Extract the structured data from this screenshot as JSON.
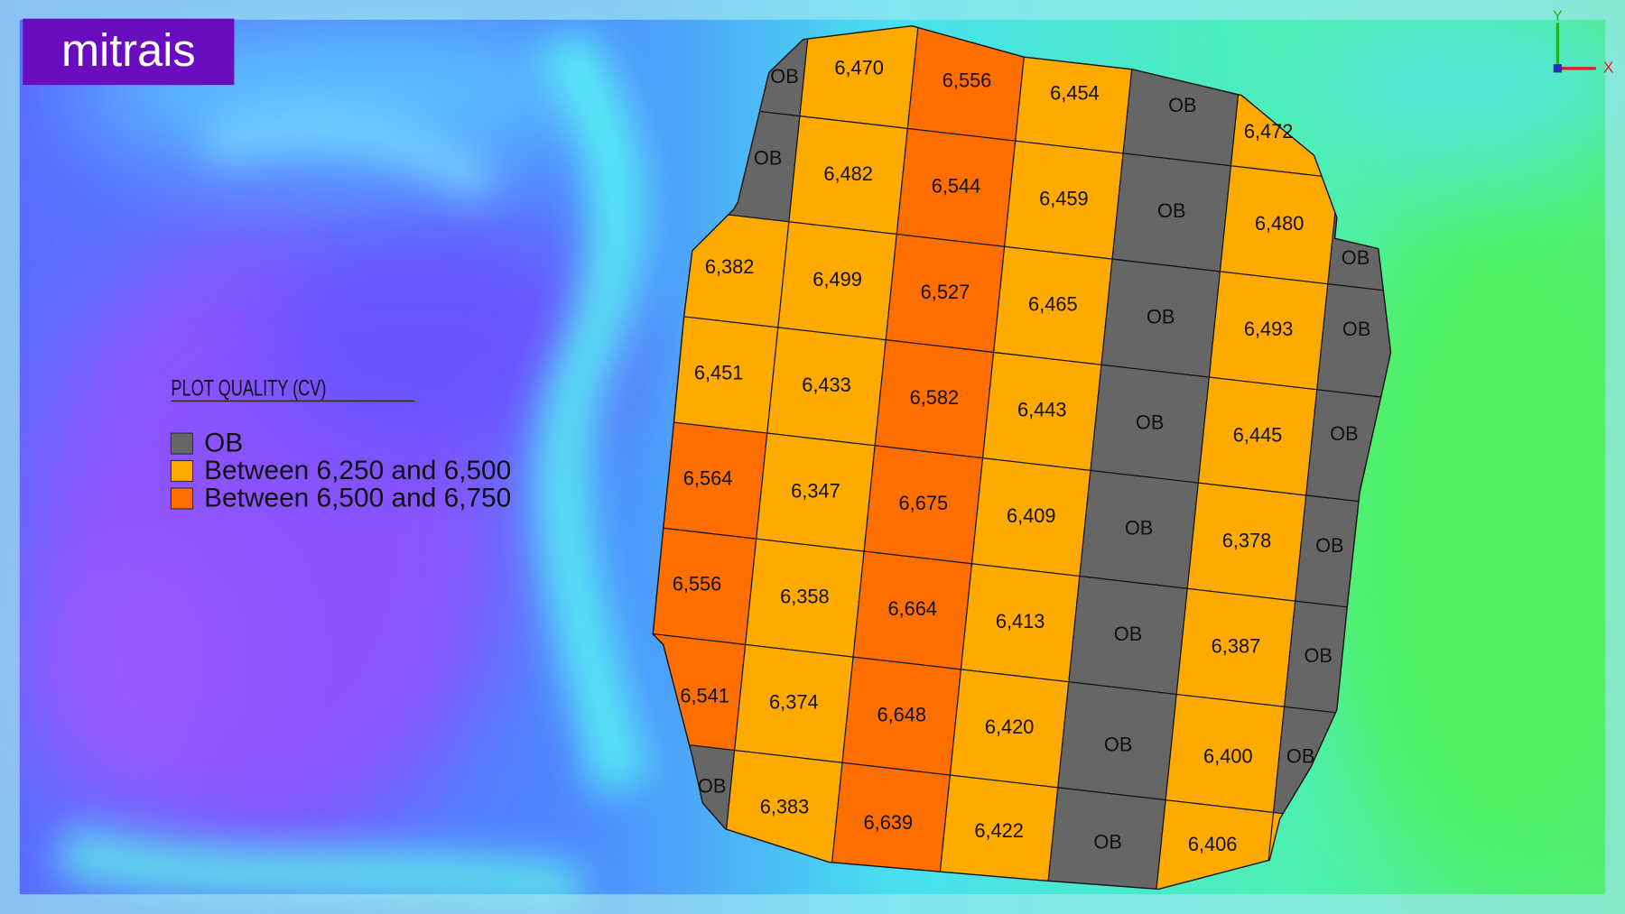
{
  "logo": "mitrais",
  "axes": {
    "y": "Y",
    "x": "X"
  },
  "legend": {
    "title": "PLOT QUALITY (CV)",
    "items": [
      {
        "label": "OB",
        "color": "#666666"
      },
      {
        "label": "Between 6,250 and 6,500",
        "color": "#ffaa00"
      },
      {
        "label": "Between 6,500 and 6,750",
        "color": "#ff6e00"
      }
    ]
  },
  "plot": {
    "columns": [
      [
        "OB",
        "OB",
        "6,382",
        "6,451",
        "6,564",
        "6,556",
        "6,541",
        "OB"
      ],
      [
        "6,470",
        "6,482",
        "6,499",
        "6,433",
        "6,347",
        "6,358",
        "6,374",
        "6,383"
      ],
      [
        "6,556",
        "6,544",
        "6,527",
        "6,582",
        "6,675",
        "6,664",
        "6,648",
        "6,639"
      ],
      [
        "6,454",
        "6,459",
        "6,465",
        "6,443",
        "6,409",
        "6,413",
        "6,420",
        "6,422"
      ],
      [
        "OB",
        "OB",
        "OB",
        "OB",
        "OB",
        "OB",
        "OB",
        "OB"
      ],
      [
        "6,472",
        "6,480",
        "6,493",
        "6,445",
        "6,378",
        "6,387",
        "6,400",
        "6,406"
      ],
      [
        null,
        "OB",
        "OB",
        "OB",
        "OB",
        "OB",
        "OB",
        null
      ]
    ]
  }
}
